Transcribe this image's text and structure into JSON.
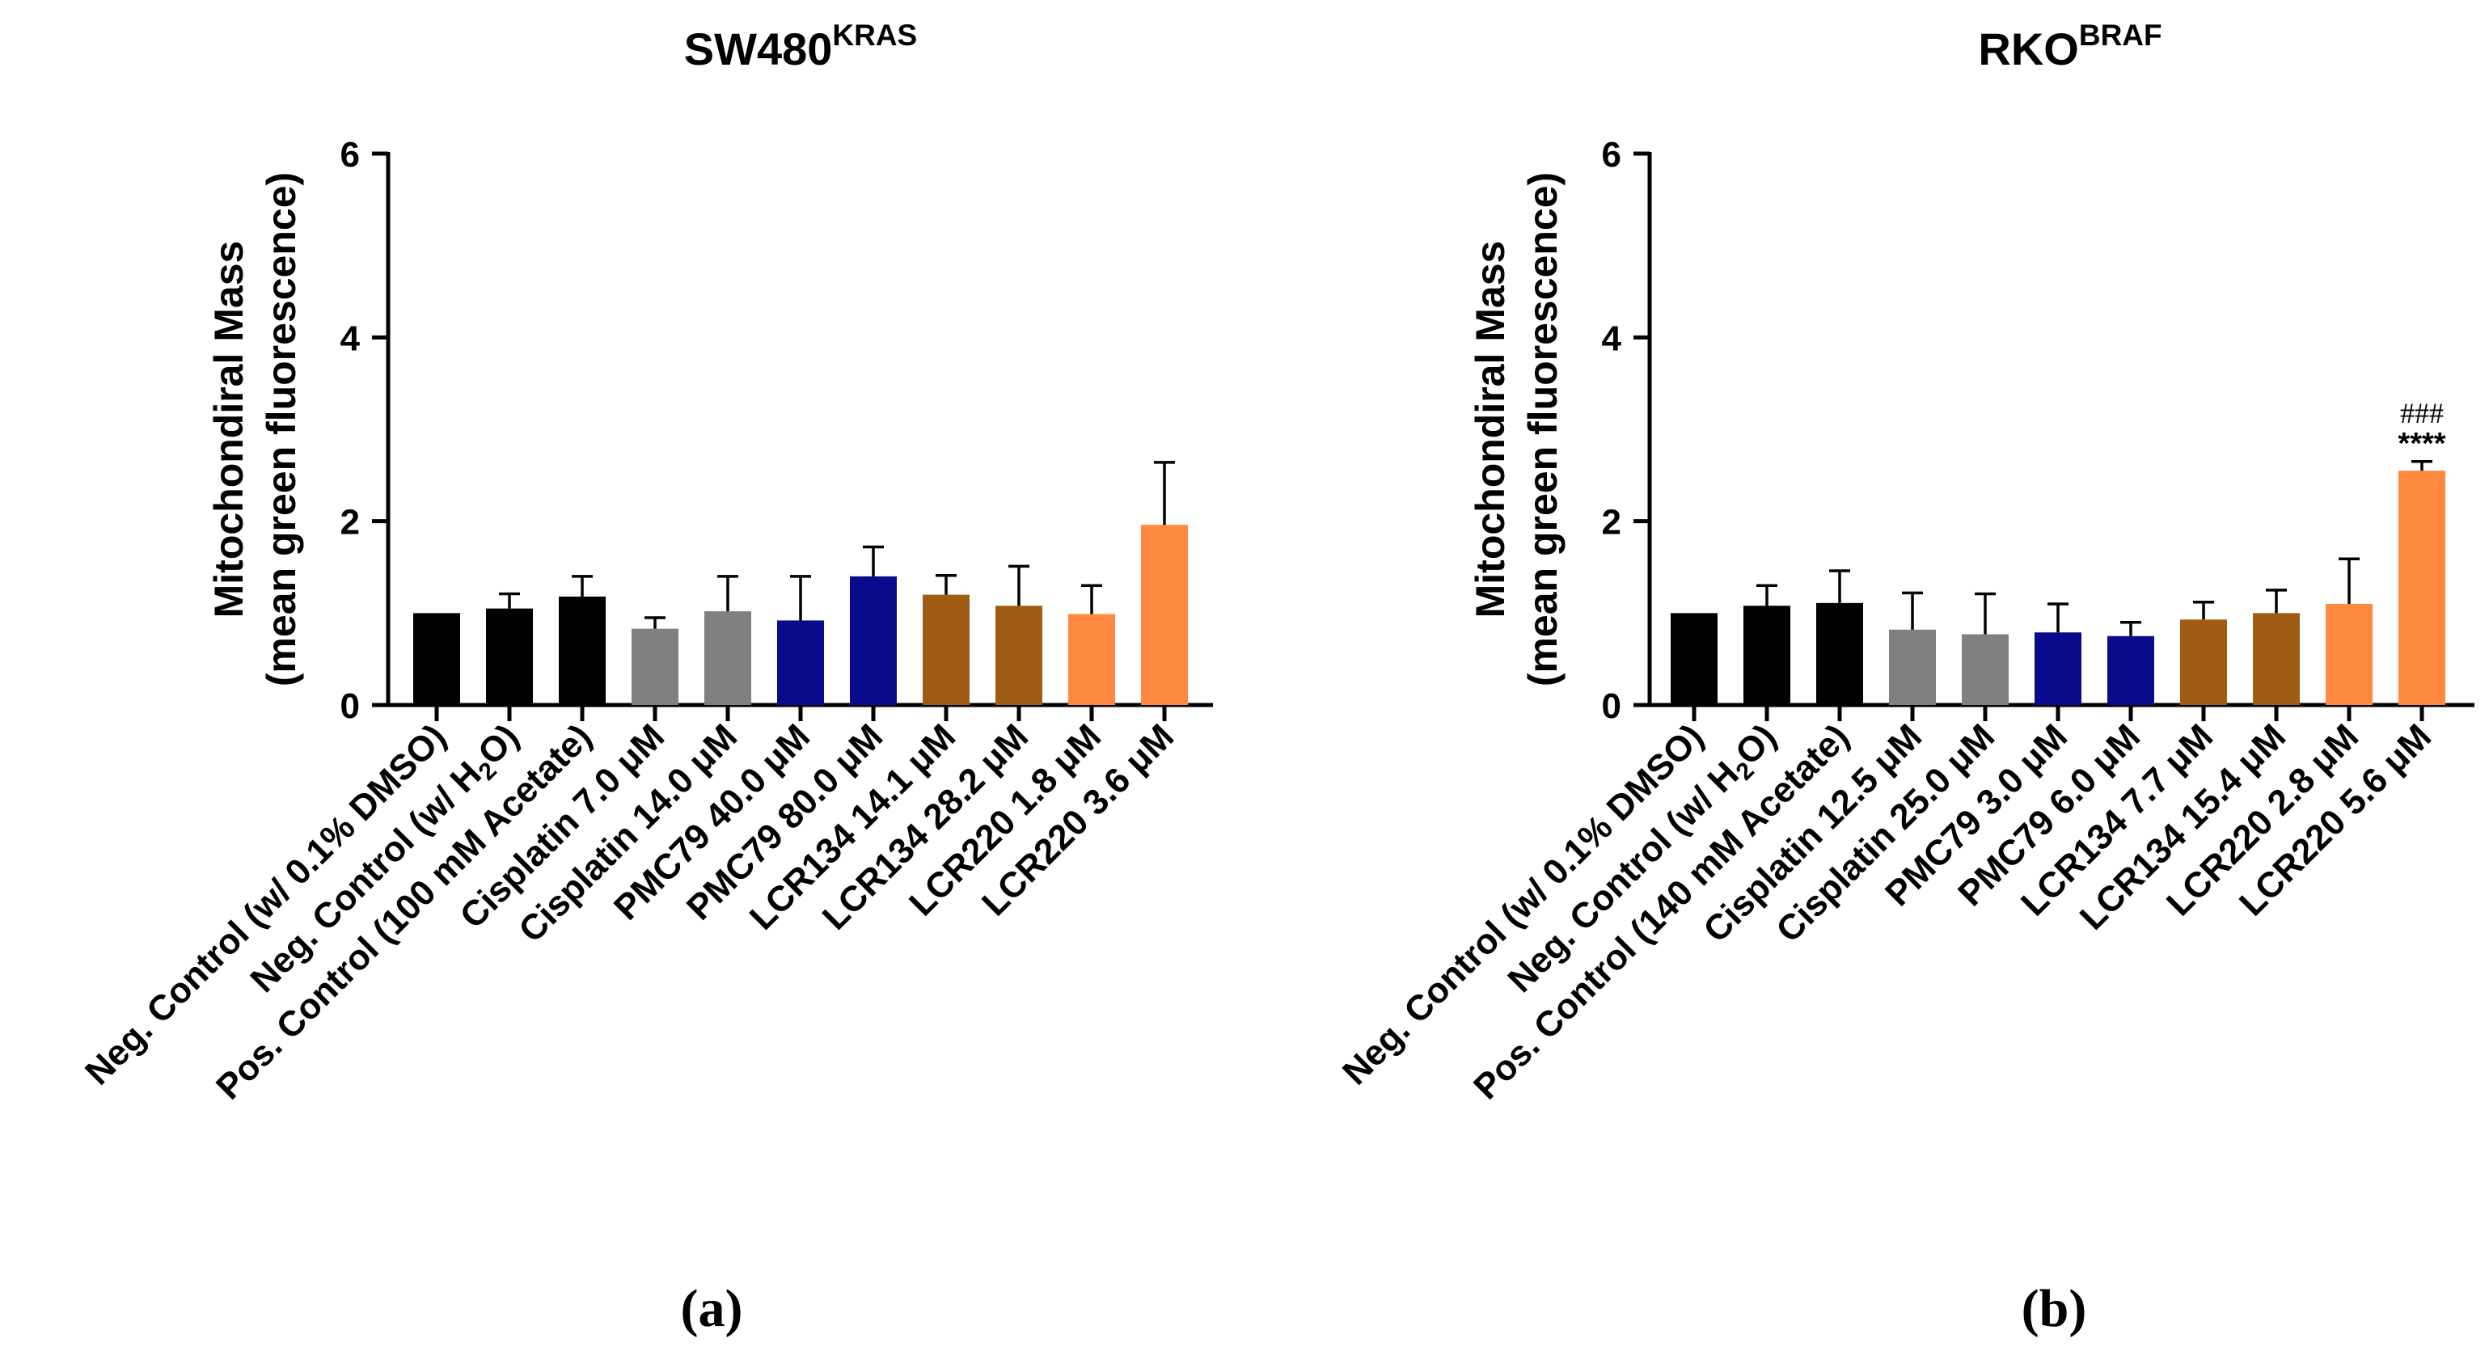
{
  "chart_data": [
    {
      "type": "bar",
      "panel": "(a)",
      "title": "SW480",
      "title_sup": "KRAS",
      "ylabel_line1": "Mitochondiral Mass",
      "ylabel_line2": "(mean green fluorescence)",
      "xlabel": "",
      "ylim": [
        0,
        6
      ],
      "yticks": [
        0,
        2,
        4,
        6
      ],
      "categories": [
        {
          "label": "Neg. Control (w/ 0.1% DMSO)",
          "value": 1.0,
          "error": 0.0,
          "color": "#000000"
        },
        {
          "label": "Neg. Control (w/ H",
          "label_sub": "2",
          "label_tail": "O)",
          "value": 1.05,
          "error": 0.16,
          "color": "#000000"
        },
        {
          "label": "Pos. Control (100 mM Acetate)",
          "value": 1.18,
          "error": 0.22,
          "color": "#000000"
        },
        {
          "label": "Cisplatin 7.0 μM",
          "value": 0.83,
          "error": 0.12,
          "color": "#808080"
        },
        {
          "label": "Cisplatin 14.0 μM",
          "value": 1.02,
          "error": 0.38,
          "color": "#808080"
        },
        {
          "label": "PMC79 40.0 μM",
          "value": 0.92,
          "error": 0.48,
          "color": "#0a0a8c"
        },
        {
          "label": "PMC79 80.0 μM",
          "value": 1.4,
          "error": 0.32,
          "color": "#0a0a8c"
        },
        {
          "label": "LCR134 14.1 μM",
          "value": 1.2,
          "error": 0.21,
          "color": "#a05c14"
        },
        {
          "label": "LCR134 28.2 μM",
          "value": 1.08,
          "error": 0.43,
          "color": "#a05c14"
        },
        {
          "label": "LCR220 1.8 μM",
          "value": 0.99,
          "error": 0.31,
          "color": "#ff8840"
        },
        {
          "label": "LCR220 3.6 μM",
          "value": 1.96,
          "error": 0.68,
          "color": "#ff8840"
        }
      ],
      "annotations": []
    },
    {
      "type": "bar",
      "panel": "(b)",
      "title": "RKO",
      "title_sup": "BRAF",
      "ylabel_line1": "Mitochondiral Mass",
      "ylabel_line2": "(mean green fluorescence)",
      "xlabel": "",
      "ylim": [
        0,
        6
      ],
      "yticks": [
        0,
        2,
        4,
        6
      ],
      "categories": [
        {
          "label": "Neg. Control (w/ 0.1% DMSO)",
          "value": 1.0,
          "error": 0.0,
          "color": "#000000"
        },
        {
          "label": "Neg. Control (w/ H",
          "label_sub": "2",
          "label_tail": "O)",
          "value": 1.08,
          "error": 0.22,
          "color": "#000000"
        },
        {
          "label": "Pos. Control (140 mM Acetate)",
          "value": 1.11,
          "error": 0.35,
          "color": "#000000"
        },
        {
          "label": "Cisplatin 12.5 μM",
          "value": 0.82,
          "error": 0.4,
          "color": "#808080"
        },
        {
          "label": "Cisplatin 25.0 μM",
          "value": 0.77,
          "error": 0.44,
          "color": "#808080"
        },
        {
          "label": "PMC79 3.0 μM",
          "value": 0.79,
          "error": 0.31,
          "color": "#0a0a8c"
        },
        {
          "label": "PMC79 6.0 μM",
          "value": 0.75,
          "error": 0.15,
          "color": "#0a0a8c"
        },
        {
          "label": "LCR134 7.7 μM",
          "value": 0.93,
          "error": 0.19,
          "color": "#a05c14"
        },
        {
          "label": "LCR134 15.4 μM",
          "value": 1.0,
          "error": 0.25,
          "color": "#a05c14"
        },
        {
          "label": "LCR220 2.8 μM",
          "value": 1.1,
          "error": 0.49,
          "color": "#ff8840"
        },
        {
          "label": "LCR220 5.6 μM",
          "value": 2.55,
          "error": 0.1,
          "color": "#ff8840"
        }
      ],
      "annotations": [
        {
          "category_index": 10,
          "text_top": "###",
          "text_bottom": "****"
        }
      ]
    }
  ]
}
